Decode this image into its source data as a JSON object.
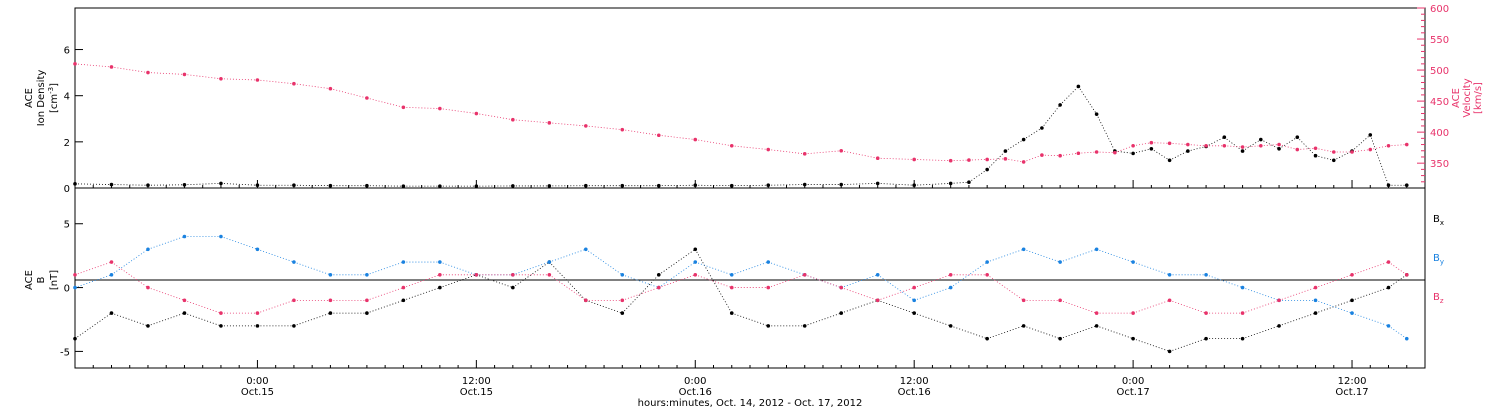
{
  "colors": {
    "ink": "#000000",
    "velocity": "#e8336b",
    "bx": "#000000",
    "by": "#1a82e0",
    "bz": "#e8336b"
  },
  "chart_data": [
    {
      "type": "scatter",
      "panel": "top",
      "ylabel_lines": [
        "ACE",
        "Ion Density"
      ],
      "ylabel_unit_base": "[cm",
      "ylabel_unit_sup": "-3",
      "ylabel_unit_end": "]",
      "y2label_lines": [
        "ACE",
        "Velocity",
        "[km/s]"
      ],
      "ylim": [
        0,
        7.8
      ],
      "yticks": [
        0,
        2,
        4,
        6
      ],
      "y2lim": [
        310,
        600
      ],
      "y2ticks": [
        350,
        400,
        450,
        500,
        550,
        600
      ],
      "xlim_hours": [
        0,
        74
      ],
      "series": [
        {
          "axis": "left",
          "color": "#000000",
          "x": [
            0,
            2,
            4,
            6,
            8,
            10,
            12,
            14,
            16,
            18,
            20,
            22,
            24,
            26,
            28,
            30,
            32,
            34,
            36,
            38,
            40,
            42,
            44,
            46,
            48,
            49,
            50,
            51,
            52,
            53,
            54,
            55,
            56,
            57,
            58,
            59,
            60,
            61,
            62,
            63,
            64,
            65,
            66,
            67,
            68,
            69,
            70,
            71,
            72,
            73
          ],
          "y": [
            0.18,
            0.15,
            0.12,
            0.14,
            0.2,
            0.12,
            0.12,
            0.1,
            0.1,
            0.08,
            0.08,
            0.08,
            0.09,
            0.09,
            0.1,
            0.1,
            0.1,
            0.12,
            0.1,
            0.12,
            0.15,
            0.15,
            0.2,
            0.12,
            0.2,
            0.25,
            0.8,
            1.6,
            2.1,
            2.6,
            3.6,
            4.4,
            3.2,
            1.6,
            1.5,
            1.7,
            1.2,
            1.6,
            1.8,
            2.2,
            1.6,
            2.1,
            1.7,
            2.2,
            1.4,
            1.2,
            1.6,
            2.3,
            0.12,
            0.12
          ]
        },
        {
          "axis": "right",
          "color": "#e8336b",
          "x": [
            0,
            2,
            4,
            6,
            8,
            10,
            12,
            14,
            16,
            18,
            20,
            22,
            24,
            26,
            28,
            30,
            32,
            34,
            36,
            38,
            40,
            42,
            44,
            46,
            48,
            49,
            50,
            51,
            52,
            53,
            54,
            55,
            56,
            57,
            58,
            59,
            60,
            61,
            62,
            63,
            64,
            65,
            66,
            67,
            68,
            69,
            70,
            71,
            72,
            73
          ],
          "y": [
            510,
            505,
            496,
            493,
            486,
            484,
            478,
            470,
            455,
            440,
            438,
            430,
            420,
            415,
            410,
            404,
            395,
            388,
            378,
            372,
            365,
            370,
            358,
            356,
            354,
            355,
            356,
            357,
            352,
            363,
            362,
            366,
            368,
            367,
            378,
            383,
            382,
            380,
            378,
            378,
            376,
            378,
            380,
            372,
            374,
            368,
            368,
            372,
            378,
            380
          ]
        }
      ]
    },
    {
      "type": "scatter",
      "panel": "bottom",
      "ylabel_lines": [
        "ACE",
        "B",
        "[nT]"
      ],
      "ylim": [
        -6.3,
        7.8
      ],
      "yticks": [
        -5,
        0,
        5
      ],
      "legend": [
        "Bx",
        "By",
        "Bz"
      ],
      "legend_position": "right",
      "xlim_hours": [
        0,
        74
      ],
      "series": [
        {
          "name": "Bx",
          "color": "#000000",
          "x": [
            0,
            2,
            4,
            6,
            8,
            10,
            12,
            14,
            16,
            18,
            20,
            22,
            24,
            26,
            28,
            30,
            32,
            34,
            36,
            38,
            40,
            42,
            44,
            46,
            48,
            50,
            52,
            54,
            56,
            58,
            60,
            62,
            64,
            66,
            68,
            70,
            72,
            73
          ],
          "y": [
            -4,
            -2,
            -3,
            -2,
            -3,
            -3,
            -3,
            -2,
            -2,
            -1,
            0,
            1,
            0,
            2,
            -1,
            -2,
            1,
            3,
            -2,
            -3,
            -3,
            -2,
            -1,
            -2,
            -3,
            -4,
            -3,
            -4,
            -3,
            -4,
            -5,
            -4,
            -4,
            -3,
            -2,
            -1,
            0,
            1
          ]
        },
        {
          "name": "By",
          "color": "#1a82e0",
          "x": [
            0,
            2,
            4,
            6,
            8,
            10,
            12,
            14,
            16,
            18,
            20,
            22,
            24,
            26,
            28,
            30,
            32,
            34,
            36,
            38,
            40,
            42,
            44,
            46,
            48,
            50,
            52,
            54,
            56,
            58,
            60,
            62,
            64,
            66,
            68,
            70,
            72,
            73
          ],
          "y": [
            0,
            1,
            3,
            4,
            4,
            3,
            2,
            1,
            1,
            2,
            2,
            1,
            1,
            2,
            3,
            1,
            0,
            2,
            1,
            2,
            1,
            0,
            1,
            -1,
            0,
            2,
            3,
            2,
            3,
            2,
            1,
            1,
            0,
            -1,
            -1,
            -2,
            -3,
            -4
          ]
        },
        {
          "name": "Bz",
          "color": "#e8336b",
          "x": [
            0,
            2,
            4,
            6,
            8,
            10,
            12,
            14,
            16,
            18,
            20,
            22,
            24,
            26,
            28,
            30,
            32,
            34,
            36,
            38,
            40,
            42,
            44,
            46,
            48,
            50,
            52,
            54,
            56,
            58,
            60,
            62,
            64,
            66,
            68,
            70,
            72,
            73
          ],
          "y": [
            1,
            2,
            0,
            -1,
            -2,
            -2,
            -1,
            -1,
            -1,
            0,
            1,
            1,
            1,
            1,
            -1,
            -1,
            0,
            1,
            0,
            0,
            1,
            0,
            -1,
            0,
            1,
            1,
            -1,
            -1,
            -2,
            -2,
            -1,
            -2,
            -2,
            -1,
            0,
            1,
            2,
            1
          ]
        }
      ]
    }
  ],
  "x_axis": {
    "ticks": [
      {
        "hour": 10,
        "time": "0:00",
        "date": "Oct.15"
      },
      {
        "hour": 22,
        "time": "12:00",
        "date": "Oct.15"
      },
      {
        "hour": 34,
        "time": "0:00",
        "date": "Oct.16"
      },
      {
        "hour": 46,
        "time": "12:00",
        "date": "Oct.16"
      },
      {
        "hour": 58,
        "time": "0:00",
        "date": "Oct.17"
      },
      {
        "hour": 70,
        "time": "12:00",
        "date": "Oct.17"
      }
    ],
    "title": "hours:minutes, Oct. 14, 2012 - Oct. 17, 2012"
  },
  "legend_labels": {
    "bx_base": "B",
    "bx_sub": "x",
    "by_base": "B",
    "by_sub": "y",
    "bz_base": "B",
    "bz_sub": "z"
  }
}
